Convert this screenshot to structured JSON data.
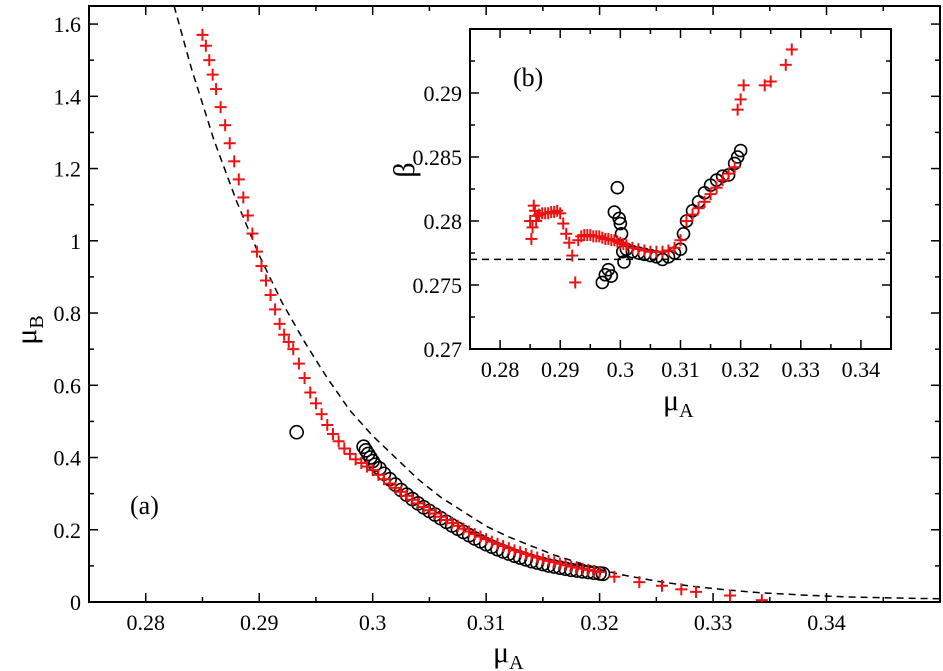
{
  "chart_data": [
    {
      "type": "scatter",
      "panel_label": "(a)",
      "xlabel": "μ",
      "xlabel_sub": "A",
      "ylabel": "μ",
      "ylabel_sub": "B",
      "xlim": [
        0.275,
        0.35
      ],
      "ylim": [
        0,
        1.65
      ],
      "xticks": [
        0.28,
        0.29,
        0.3,
        0.31,
        0.32,
        0.33,
        0.34
      ],
      "xtick_labels": [
        "0.28",
        "0.29",
        "0.3",
        "0.31",
        "0.32",
        "0.33",
        "0.34"
      ],
      "yticks": [
        0,
        0.2,
        0.4,
        0.6,
        0.8,
        1,
        1.2,
        1.4,
        1.6
      ],
      "ytick_labels": [
        "0",
        "0.2",
        "0.4",
        "0.6",
        "0.8",
        "1",
        "1.2",
        "1.4",
        "1.6"
      ],
      "series": [
        {
          "name": "circles",
          "marker": "circle",
          "color": "#000000",
          "x": [
            0.2933,
            0.2992,
            0.2994,
            0.2996,
            0.2998,
            0.3,
            0.3002,
            0.3006,
            0.301,
            0.3015,
            0.302,
            0.3025,
            0.303,
            0.3035,
            0.304,
            0.3045,
            0.305,
            0.3055,
            0.306,
            0.3065,
            0.307,
            0.3075,
            0.308,
            0.3085,
            0.309,
            0.3095,
            0.31,
            0.3105,
            0.311,
            0.3115,
            0.312,
            0.3125,
            0.313,
            0.3135,
            0.314,
            0.3145,
            0.315,
            0.3155,
            0.316,
            0.3165,
            0.317,
            0.3175,
            0.318,
            0.3185,
            0.319,
            0.3195,
            0.32,
            0.3203
          ],
          "y": [
            0.47,
            0.43,
            0.42,
            0.41,
            0.4,
            0.39,
            0.38,
            0.37,
            0.355,
            0.34,
            0.325,
            0.31,
            0.297,
            0.285,
            0.273,
            0.262,
            0.252,
            0.242,
            0.232,
            0.222,
            0.212,
            0.203,
            0.194,
            0.185,
            0.176,
            0.168,
            0.16,
            0.153,
            0.146,
            0.14,
            0.134,
            0.128,
            0.123,
            0.118,
            0.113,
            0.109,
            0.105,
            0.101,
            0.098,
            0.095,
            0.092,
            0.089,
            0.087,
            0.085,
            0.083,
            0.081,
            0.079,
            0.078
          ]
        },
        {
          "name": "plus",
          "marker": "plus",
          "color": "#ee1111",
          "x": [
            0.285,
            0.2853,
            0.2856,
            0.2859,
            0.2862,
            0.2866,
            0.287,
            0.2874,
            0.2878,
            0.2882,
            0.2886,
            0.289,
            0.2894,
            0.2898,
            0.2902,
            0.2906,
            0.291,
            0.2914,
            0.2918,
            0.2922,
            0.2926,
            0.293,
            0.2935,
            0.294,
            0.2945,
            0.295,
            0.2955,
            0.296,
            0.2965,
            0.297,
            0.2975,
            0.298,
            0.2985,
            0.299,
            0.2995,
            0.3,
            0.3005,
            0.301,
            0.3015,
            0.302,
            0.3025,
            0.303,
            0.3035,
            0.304,
            0.3045,
            0.305,
            0.3055,
            0.306,
            0.3065,
            0.307,
            0.3075,
            0.308,
            0.3085,
            0.309,
            0.3095,
            0.31,
            0.3105,
            0.311,
            0.3115,
            0.312,
            0.3125,
            0.313,
            0.3135,
            0.314,
            0.3145,
            0.315,
            0.3155,
            0.316,
            0.3165,
            0.317,
            0.3175,
            0.318,
            0.3185,
            0.319,
            0.3195,
            0.32,
            0.3213,
            0.3235,
            0.3255,
            0.3272,
            0.3285,
            0.3315,
            0.3343
          ],
          "y": [
            1.57,
            1.54,
            1.5,
            1.46,
            1.42,
            1.37,
            1.32,
            1.27,
            1.22,
            1.17,
            1.12,
            1.07,
            1.02,
            0.97,
            0.93,
            0.89,
            0.85,
            0.81,
            0.77,
            0.74,
            0.72,
            0.7,
            0.66,
            0.62,
            0.58,
            0.55,
            0.52,
            0.49,
            0.465,
            0.445,
            0.425,
            0.41,
            0.395,
            0.385,
            0.375,
            0.365,
            0.352,
            0.34,
            0.328,
            0.316,
            0.305,
            0.294,
            0.283,
            0.273,
            0.263,
            0.254,
            0.245,
            0.236,
            0.227,
            0.219,
            0.211,
            0.203,
            0.195,
            0.188,
            0.181,
            0.174,
            0.167,
            0.161,
            0.155,
            0.149,
            0.143,
            0.138,
            0.133,
            0.128,
            0.123,
            0.118,
            0.114,
            0.11,
            0.106,
            0.102,
            0.098,
            0.095,
            0.092,
            0.089,
            0.086,
            0.083,
            0.07,
            0.055,
            0.045,
            0.035,
            0.028,
            0.018,
            0.005
          ]
        },
        {
          "name": "reference curve",
          "marker": "dashed-line",
          "color": "#000000",
          "x": [
            0.2825,
            0.284,
            0.286,
            0.288,
            0.29,
            0.292,
            0.294,
            0.296,
            0.298,
            0.3,
            0.302,
            0.304,
            0.306,
            0.308,
            0.31,
            0.312,
            0.314,
            0.316,
            0.318,
            0.32,
            0.322,
            0.325,
            0.328,
            0.331,
            0.334,
            0.338,
            0.342,
            0.346,
            0.35
          ],
          "y": [
            1.65,
            1.48,
            1.28,
            1.11,
            0.96,
            0.83,
            0.72,
            0.62,
            0.53,
            0.46,
            0.4,
            0.34,
            0.29,
            0.25,
            0.21,
            0.18,
            0.155,
            0.13,
            0.11,
            0.09,
            0.075,
            0.058,
            0.044,
            0.034,
            0.026,
            0.019,
            0.014,
            0.011,
            0.009
          ]
        }
      ]
    },
    {
      "type": "scatter",
      "panel_label": "(b)",
      "xlabel": "μ",
      "xlabel_sub": "A",
      "ylabel": "β",
      "xlim": [
        0.275,
        0.345
      ],
      "ylim": [
        0.27,
        0.295
      ],
      "xticks": [
        0.28,
        0.29,
        0.3,
        0.31,
        0.32,
        0.33,
        0.34
      ],
      "xtick_labels": [
        "0.28",
        "0.29",
        "0.3",
        "0.31",
        "0.32",
        "0.33",
        "0.34"
      ],
      "yticks": [
        0.27,
        0.275,
        0.28,
        0.285,
        0.29
      ],
      "ytick_labels": [
        "0.27",
        "0.275",
        "0.28",
        "0.285",
        "0.29"
      ],
      "series": [
        {
          "name": "circles",
          "marker": "circle",
          "color": "#000000",
          "x": [
            0.297,
            0.2975,
            0.298,
            0.2985,
            0.299,
            0.2995,
            0.2998,
            0.3,
            0.3002,
            0.3004,
            0.3006,
            0.301,
            0.302,
            0.303,
            0.304,
            0.305,
            0.306,
            0.307,
            0.308,
            0.309,
            0.31,
            0.3105,
            0.311,
            0.312,
            0.313,
            0.314,
            0.315,
            0.316,
            0.317,
            0.318,
            0.319,
            0.3195,
            0.32
          ],
          "y": [
            0.2752,
            0.2758,
            0.2762,
            0.2757,
            0.2807,
            0.2826,
            0.2802,
            0.2798,
            0.279,
            0.2776,
            0.2768,
            0.2778,
            0.2776,
            0.2775,
            0.2774,
            0.2773,
            0.2772,
            0.277,
            0.2772,
            0.2775,
            0.2778,
            0.279,
            0.28,
            0.2808,
            0.2815,
            0.2822,
            0.2828,
            0.2832,
            0.2835,
            0.2836,
            0.2845,
            0.285,
            0.2855
          ]
        },
        {
          "name": "plus",
          "marker": "plus",
          "color": "#ee1111",
          "x": [
            0.285,
            0.2852,
            0.2854,
            0.2856,
            0.2858,
            0.286,
            0.2862,
            0.2865,
            0.287,
            0.2875,
            0.288,
            0.2885,
            0.289,
            0.2895,
            0.29,
            0.2905,
            0.291,
            0.2915,
            0.292,
            0.2925,
            0.293,
            0.2935,
            0.294,
            0.2945,
            0.295,
            0.2955,
            0.296,
            0.2965,
            0.297,
            0.2975,
            0.298,
            0.2985,
            0.299,
            0.2995,
            0.3,
            0.3005,
            0.301,
            0.302,
            0.303,
            0.304,
            0.305,
            0.306,
            0.307,
            0.308,
            0.309,
            0.31,
            0.311,
            0.312,
            0.313,
            0.314,
            0.315,
            0.316,
            0.317,
            0.318,
            0.319,
            0.3195,
            0.32,
            0.3205,
            0.324,
            0.325,
            0.3275,
            0.3285
          ],
          "y": [
            0.28,
            0.2786,
            0.2795,
            0.2812,
            0.2808,
            0.28,
            0.2804,
            0.2805,
            0.2806,
            0.2806,
            0.2806,
            0.2807,
            0.2807,
            0.2808,
            0.2806,
            0.2798,
            0.279,
            0.2783,
            0.2773,
            0.2752,
            0.2785,
            0.2788,
            0.2789,
            0.2789,
            0.2789,
            0.2788,
            0.2788,
            0.2788,
            0.2787,
            0.2786,
            0.2786,
            0.2785,
            0.2785,
            0.2784,
            0.2783,
            0.2782,
            0.2781,
            0.2779,
            0.2778,
            0.2777,
            0.2776,
            0.2776,
            0.2776,
            0.2777,
            0.2779,
            0.2785,
            0.28,
            0.2805,
            0.281,
            0.2815,
            0.2821,
            0.2826,
            0.2832,
            0.2837,
            0.2842,
            0.2887,
            0.2895,
            0.2906,
            0.2906,
            0.2909,
            0.2922,
            0.2934
          ]
        },
        {
          "name": "reference line",
          "marker": "dashed-line",
          "color": "#000000",
          "x": [
            0.275,
            0.345
          ],
          "y": [
            0.277,
            0.277
          ]
        }
      ]
    }
  ]
}
